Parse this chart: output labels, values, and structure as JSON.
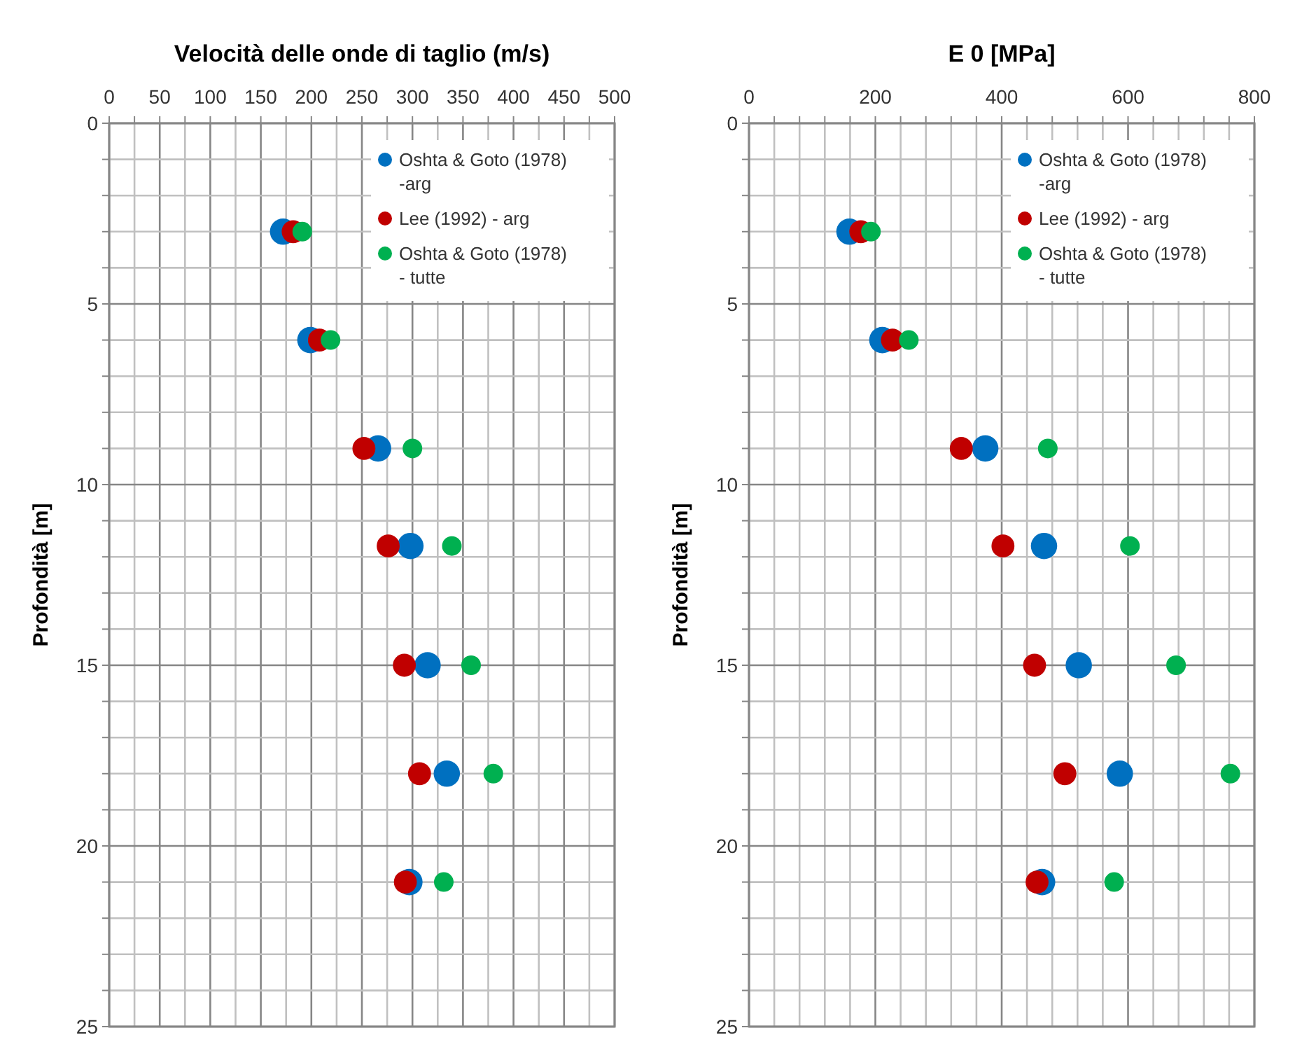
{
  "chart_data": [
    {
      "type": "scatter",
      "title": "Velocità delle onde di taglio (m/s)",
      "ylabel": "Profondità [m]",
      "xlim": [
        0,
        500
      ],
      "ylim": [
        25,
        0
      ],
      "xticks": [
        0,
        {
          "value": 25,
          "label": null
        },
        50,
        {
          "value": 75,
          "label": null
        },
        100,
        {
          "value": 125,
          "label": null
        },
        150,
        {
          "value": 175,
          "label": null
        },
        200,
        {
          "value": 225,
          "label": null
        },
        250,
        {
          "value": 275,
          "label": null
        },
        300,
        {
          "value": 325,
          "label": null
        },
        350,
        {
          "value": 375,
          "label": null
        },
        400,
        {
          "value": 425,
          "label": null
        },
        450,
        {
          "value": 475,
          "label": null
        },
        500
      ],
      "yticks": [
        0,
        {
          "value": 1,
          "label": null
        },
        {
          "value": 2,
          "label": null
        },
        {
          "value": 3,
          "label": null
        },
        {
          "value": 4,
          "label": null
        },
        5,
        {
          "value": 6,
          "label": null
        },
        {
          "value": 7,
          "label": null
        },
        {
          "value": 8,
          "label": null
        },
        {
          "value": 9,
          "label": null
        },
        10,
        {
          "value": 11,
          "label": null
        },
        {
          "value": 12,
          "label": null
        },
        {
          "value": 13,
          "label": null
        },
        {
          "value": 14,
          "label": null
        },
        15,
        {
          "value": 16,
          "label": null
        },
        {
          "value": 17,
          "label": null
        },
        {
          "value": 18,
          "label": null
        },
        {
          "value": 19,
          "label": null
        },
        20,
        {
          "value": 21,
          "label": null
        },
        {
          "value": 22,
          "label": null
        },
        {
          "value": 23,
          "label": null
        },
        {
          "value": 24,
          "label": null
        },
        25
      ],
      "grid": true,
      "legend": "top right",
      "marker": "circle",
      "series": [
        {
          "name": "Oshta & Goto (1978) -arg",
          "color": "#0070c0",
          "x": [
            172,
            199,
            266,
            298,
            315,
            334,
            297
          ],
          "values": [
            3,
            6,
            9,
            11.7,
            15,
            18,
            21
          ]
        },
        {
          "name": "Lee (1992) - arg",
          "color": "#c00000",
          "x": [
            182,
            208,
            252,
            276,
            292,
            307,
            293
          ],
          "values": [
            3,
            6,
            9,
            11.7,
            15,
            18,
            21
          ]
        },
        {
          "name": "Oshta & Goto (1978) - tutte",
          "color": "#00b050",
          "x": [
            191,
            219,
            300,
            339,
            358,
            380,
            331
          ],
          "values": [
            3,
            6,
            9,
            11.7,
            15,
            18,
            21
          ]
        }
      ]
    },
    {
      "type": "scatter",
      "title": "E 0 [MPa]",
      "ylabel": "Profondità [m]",
      "xlim": [
        0,
        800
      ],
      "ylim": [
        25,
        0
      ],
      "xticks": [
        0,
        {
          "value": 40,
          "label": null
        },
        {
          "value": 80,
          "label": null
        },
        {
          "value": 120,
          "label": null
        },
        {
          "value": 160,
          "label": null
        },
        200,
        {
          "value": 240,
          "label": null
        },
        {
          "value": 280,
          "label": null
        },
        {
          "value": 320,
          "label": null
        },
        {
          "value": 360,
          "label": null
        },
        400,
        {
          "value": 440,
          "label": null
        },
        {
          "value": 480,
          "label": null
        },
        {
          "value": 520,
          "label": null
        },
        {
          "value": 560,
          "label": null
        },
        600,
        {
          "value": 640,
          "label": null
        },
        {
          "value": 680,
          "label": null
        },
        {
          "value": 720,
          "label": null
        },
        {
          "value": 760,
          "label": null
        },
        800
      ],
      "yticks": [
        0,
        {
          "value": 1,
          "label": null
        },
        {
          "value": 2,
          "label": null
        },
        {
          "value": 3,
          "label": null
        },
        {
          "value": 4,
          "label": null
        },
        5,
        {
          "value": 6,
          "label": null
        },
        {
          "value": 7,
          "label": null
        },
        {
          "value": 8,
          "label": null
        },
        {
          "value": 9,
          "label": null
        },
        10,
        {
          "value": 11,
          "label": null
        },
        {
          "value": 12,
          "label": null
        },
        {
          "value": 13,
          "label": null
        },
        {
          "value": 14,
          "label": null
        },
        15,
        {
          "value": 16,
          "label": null
        },
        {
          "value": 17,
          "label": null
        },
        {
          "value": 18,
          "label": null
        },
        {
          "value": 19,
          "label": null
        },
        20,
        {
          "value": 21,
          "label": null
        },
        {
          "value": 22,
          "label": null
        },
        {
          "value": 23,
          "label": null
        },
        {
          "value": 24,
          "label": null
        },
        25
      ],
      "grid": true,
      "legend": "top right",
      "marker": "circle",
      "series": [
        {
          "name": "Oshta & Goto (1978) -arg",
          "color": "#0070c0",
          "x": [
            159,
            211,
            374,
            467,
            522,
            587,
            464
          ],
          "values": [
            3,
            6,
            9,
            11.7,
            15,
            18,
            21
          ]
        },
        {
          "name": "Lee (1992) - arg",
          "color": "#c00000",
          "x": [
            177,
            227,
            336,
            402,
            452,
            500,
            456
          ],
          "values": [
            3,
            6,
            9,
            11.7,
            15,
            18,
            21
          ]
        },
        {
          "name": "Oshta & Goto (1978) - tutte",
          "color": "#00b050",
          "x": [
            193,
            253,
            473,
            603,
            676,
            762,
            578
          ],
          "values": [
            3,
            6,
            9,
            11.7,
            15,
            18,
            21
          ]
        }
      ]
    }
  ]
}
